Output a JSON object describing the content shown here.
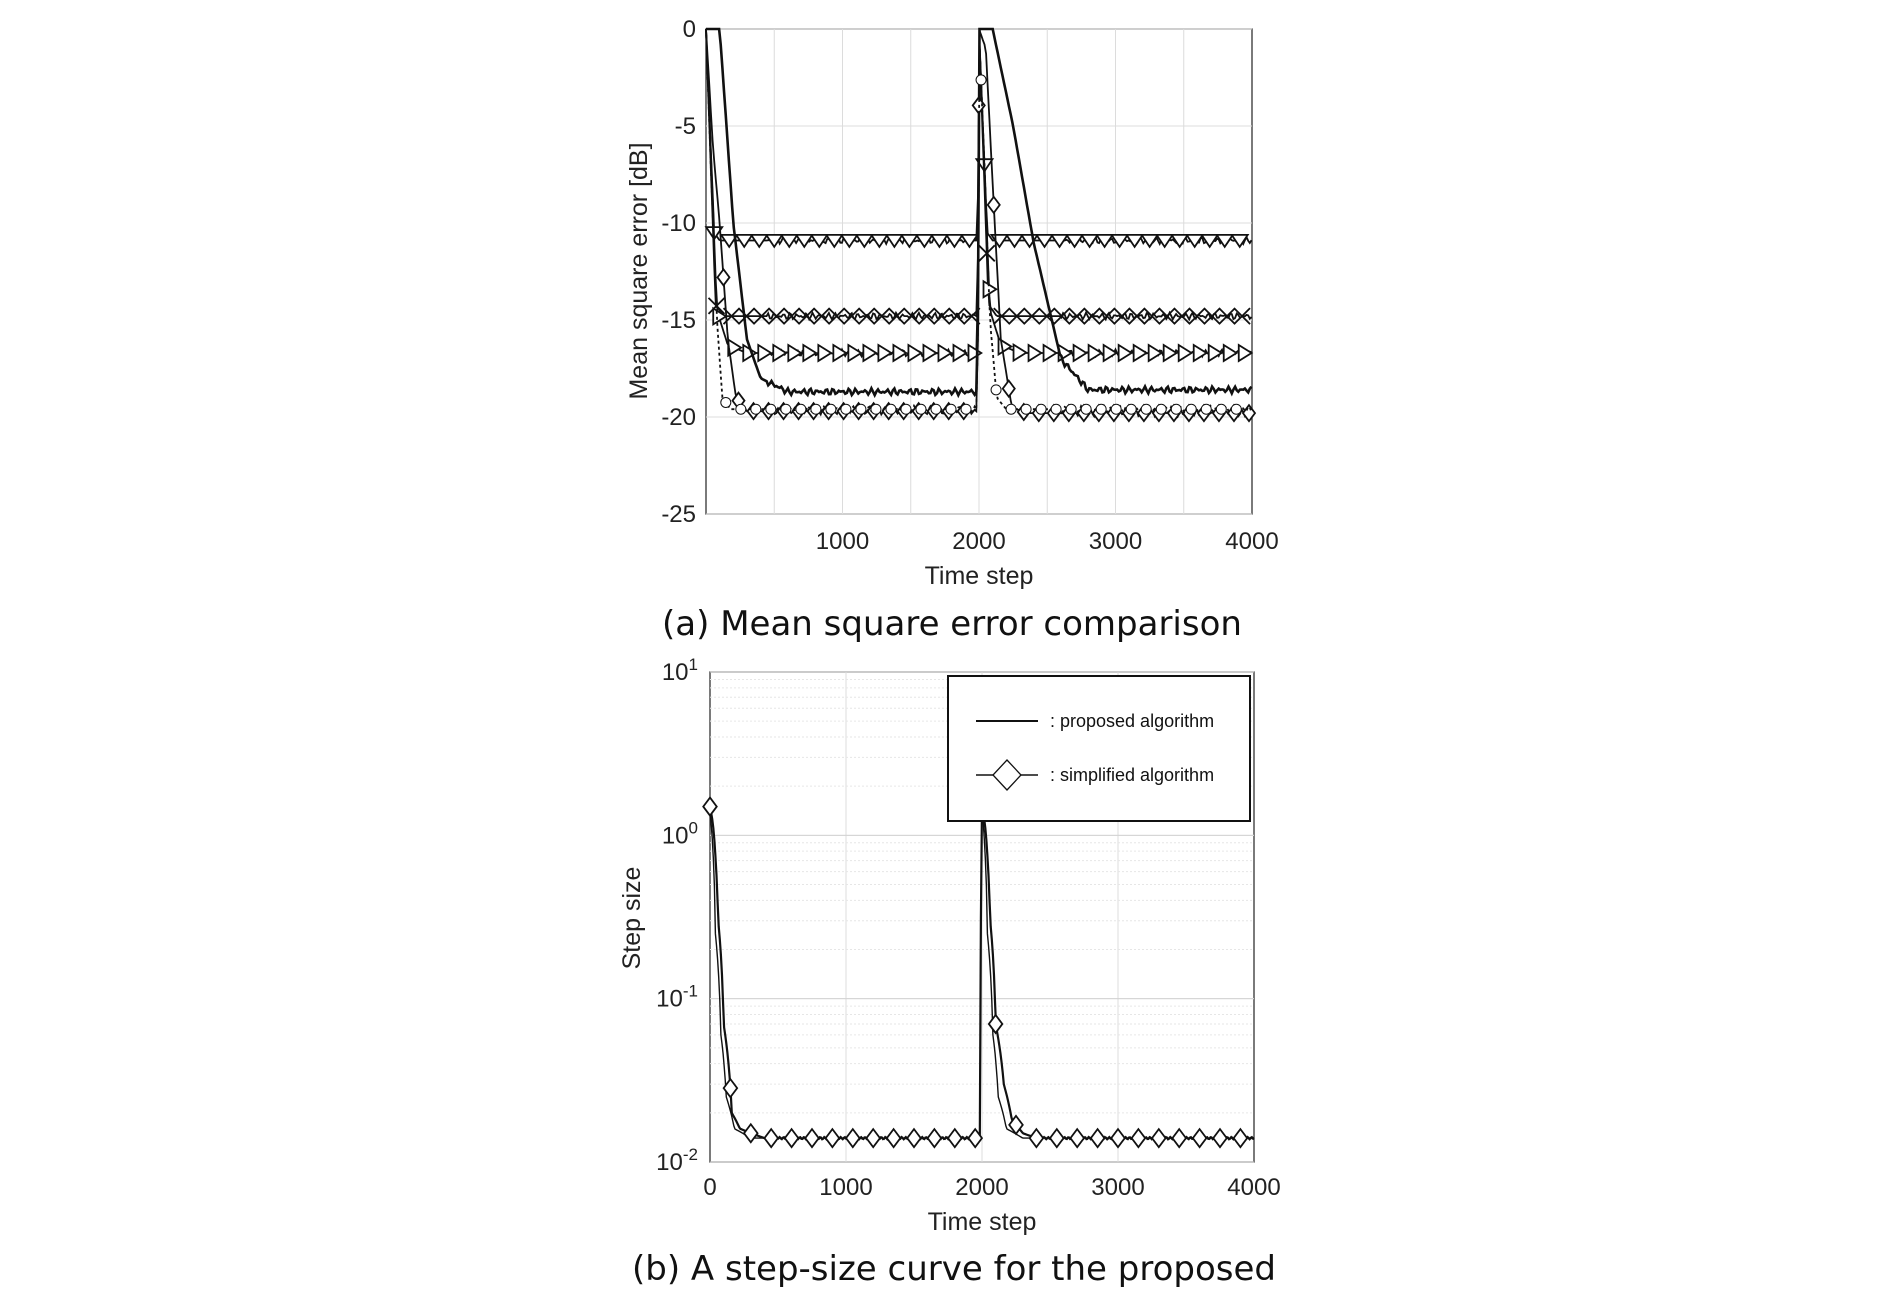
{
  "chart_data": [
    {
      "type": "line",
      "caption": "(a) Mean square error comparison",
      "xlabel": "Time step",
      "ylabel": "Mean square error [dB]",
      "xlim": [
        0,
        4000
      ],
      "ylim": [
        -25,
        0
      ],
      "xticks": [
        1000,
        2000,
        3000,
        4000
      ],
      "xtick_labels": [
        "1000",
        "2000",
        "3000",
        "4000"
      ],
      "yticks": [
        0,
        -5,
        -10,
        -15,
        -20,
        -25
      ],
      "ytick_labels": [
        "0",
        "-5",
        "-10",
        "-15",
        "-20",
        "-25"
      ],
      "grid": true,
      "series": [
        {
          "marker": "triangle-down",
          "x": [
            0,
            60,
            100,
            1990,
            2000,
            2060,
            2100,
            4000
          ],
          "y": [
            0,
            -10.5,
            -10.9,
            -10.9,
            0,
            -10.5,
            -10.9,
            -10.9
          ]
        },
        {
          "marker": "x",
          "x": [
            0,
            70,
            130,
            1990,
            2000,
            2070,
            2130,
            4000
          ],
          "y": [
            0,
            -14.2,
            -14.8,
            -14.8,
            0,
            -14.2,
            -14.8,
            -14.8
          ]
        },
        {
          "marker": "triangle-right",
          "x": [
            0,
            80,
            160,
            300,
            1990,
            2000,
            2080,
            2160,
            2300,
            4000
          ],
          "y": [
            0,
            -14.5,
            -16.3,
            -16.7,
            -16.7,
            0,
            -14.5,
            -16.3,
            -16.7,
            -16.7
          ]
        },
        {
          "marker": "none",
          "x": [
            0,
            100,
            200,
            300,
            400,
            600,
            1990,
            2000,
            2100,
            2250,
            2400,
            2600,
            2800,
            4000
          ],
          "y": [
            0,
            0,
            -10,
            -16,
            -18,
            -18.7,
            -18.7,
            0,
            0,
            -5,
            -11,
            -17,
            -18.6,
            -18.6
          ]
        },
        {
          "marker": "diamond",
          "x": [
            0,
            50,
            100,
            160,
            220,
            300,
            1990,
            2000,
            2050,
            2100,
            2160,
            2240,
            2350,
            4000
          ],
          "y": [
            0,
            -6,
            -10,
            -16,
            -19,
            -19.7,
            -19.7,
            0,
            -1,
            -8,
            -16,
            -19.5,
            -19.8,
            -19.8
          ]
        },
        {
          "marker": "circle",
          "x": [
            0,
            40,
            80,
            120,
            180,
            1990,
            2000,
            2040,
            2080,
            2130,
            2200,
            4000
          ],
          "y": [
            0,
            -8,
            -15,
            -19,
            -19.6,
            -19.6,
            0,
            -7,
            -15,
            -19,
            -19.6,
            -19.6
          ]
        }
      ]
    },
    {
      "type": "line",
      "caption": "(b) A step-size curve for the proposed",
      "xlabel": "Time step",
      "ylabel": "Step size",
      "xlim": [
        0,
        4000
      ],
      "ylim": [
        0.01,
        10
      ],
      "yscale": "log",
      "xticks": [
        0,
        1000,
        2000,
        3000,
        4000
      ],
      "xtick_labels": [
        "0",
        "1000",
        "2000",
        "3000",
        "4000"
      ],
      "ytick_bases": [
        "10",
        "10",
        "10",
        "10"
      ],
      "ytick_exponents": [
        "-2",
        "-1",
        "0",
        "1"
      ],
      "grid": true,
      "legend_position": "top-right",
      "series": [
        {
          "name": ": proposed algorithm",
          "marker": "none",
          "x": [
            0,
            15,
            40,
            80,
            120,
            180,
            300,
            1990,
            2000,
            2015,
            2040,
            2080,
            2120,
            2180,
            2300,
            4000
          ],
          "y": [
            1.4,
            1.0,
            0.25,
            0.06,
            0.025,
            0.016,
            0.014,
            0.014,
            1.5,
            1.0,
            0.25,
            0.06,
            0.025,
            0.016,
            0.014,
            0.014
          ]
        },
        {
          "name": ": simplified algorithm",
          "marker": "diamond",
          "x": [
            0,
            20,
            60,
            100,
            160,
            220,
            300,
            400,
            1990,
            2000,
            2020,
            2060,
            2100,
            2160,
            2220,
            2300,
            2400,
            4000
          ],
          "y": [
            1.5,
            1.2,
            0.3,
            0.07,
            0.02,
            0.016,
            0.015,
            0.014,
            0.014,
            1.5,
            1.2,
            0.3,
            0.07,
            0.03,
            0.018,
            0.015,
            0.014,
            0.014
          ]
        }
      ]
    }
  ]
}
